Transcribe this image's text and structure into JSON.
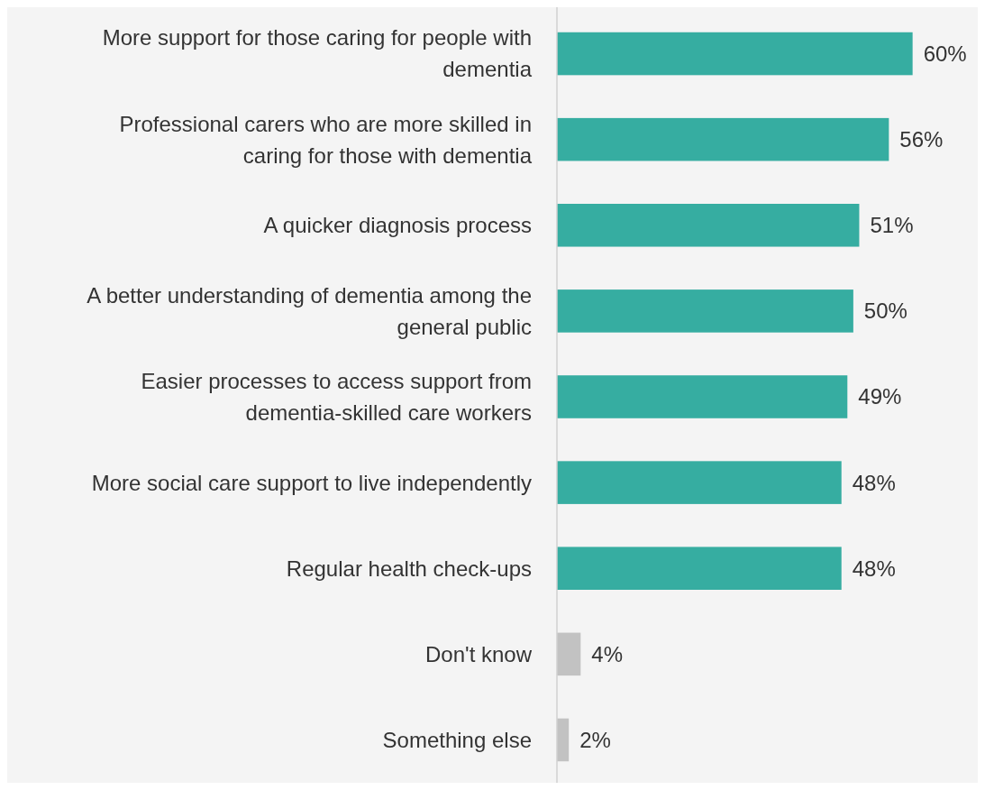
{
  "chart_data": {
    "type": "bar",
    "orientation": "horizontal",
    "categories": [
      "More support for those caring for people with dementia",
      "Professional carers who are more skilled in caring for those with dementia",
      "A quicker diagnosis process",
      "A better understanding of dementia among the general public",
      "Easier processes to access support from dementia-skilled care workers",
      "More social care support to live independently",
      "Regular health check-ups",
      "Don't know",
      "Something else"
    ],
    "values": [
      60,
      56,
      51,
      50,
      49,
      48,
      48,
      4,
      2
    ],
    "colors": [
      "#36ada1",
      "#36ada1",
      "#36ada1",
      "#36ada1",
      "#36ada1",
      "#36ada1",
      "#36ada1",
      "#c2c2c2",
      "#c2c2c2"
    ],
    "value_labels": [
      "60%",
      "56%",
      "51%",
      "50%",
      "49%",
      "48%",
      "48%",
      "4%",
      "2%"
    ],
    "xlim": [
      0,
      71
    ],
    "tick_labels": "y"
  }
}
